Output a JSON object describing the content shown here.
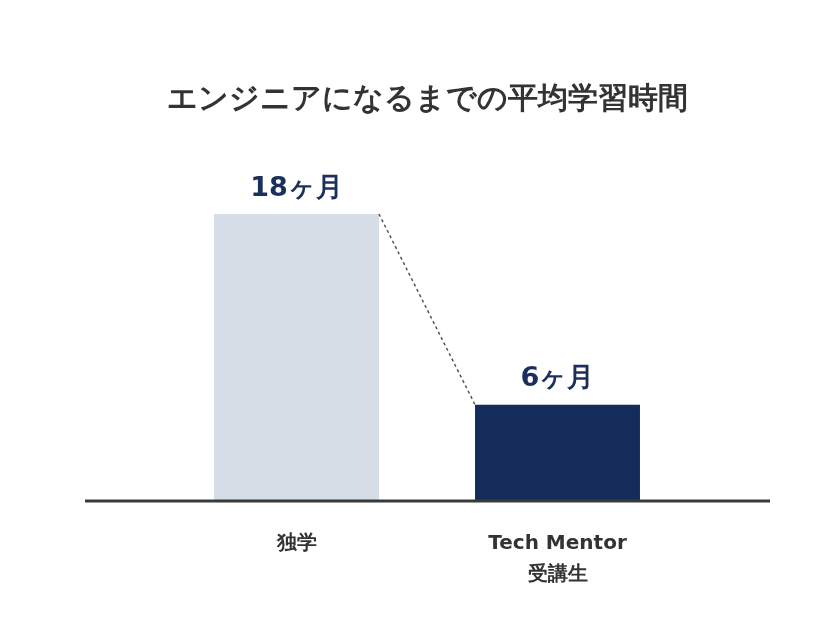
{
  "chart_data": {
    "type": "bar",
    "title": "エンジニアになるまでの平均学習時間",
    "categories": [
      "独学",
      "Tech Mentor\n受講生"
    ],
    "values": [
      18,
      6
    ],
    "value_labels": [
      "18ヶ月",
      "6ヶ月"
    ],
    "colors": [
      "#d5dde6",
      "#152c5b"
    ],
    "ylim": [
      0,
      18
    ],
    "grid": false,
    "data_labels": true,
    "tick_labels": "x"
  }
}
